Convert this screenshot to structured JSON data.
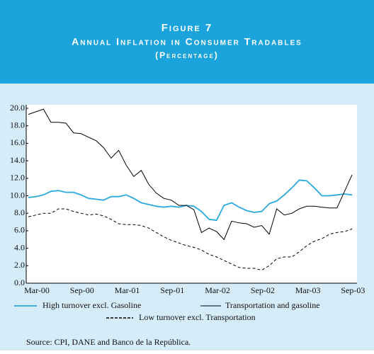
{
  "chart_data": {
    "type": "line",
    "figure": "Figure 7",
    "title": "Annual Inflation in Consumer Tradables",
    "subtitle": "(Percentage)",
    "source": "Source: CPI, DANE and Banco de la República.",
    "categories": [
      "Mar-00",
      null,
      null,
      null,
      null,
      null,
      "Sep-00",
      null,
      null,
      null,
      null,
      null,
      "Mar-01",
      null,
      null,
      null,
      null,
      null,
      "Sep-01",
      null,
      null,
      null,
      null,
      null,
      "Mar-02",
      null,
      null,
      null,
      null,
      null,
      "Sep-02",
      null,
      null,
      null,
      null,
      null,
      "Mar-03",
      null,
      null,
      null,
      null,
      null,
      "Sep-03",
      null
    ],
    "series": [
      {
        "name": "High turnover excl. Gasoline",
        "color": "#29a9df",
        "line_style": "solid",
        "values": [
          9.8,
          9.9,
          10.1,
          10.5,
          10.6,
          10.4,
          10.4,
          10.1,
          9.7,
          9.6,
          9.5,
          9.9,
          9.9,
          10.1,
          9.7,
          9.2,
          9.0,
          8.8,
          8.7,
          8.8,
          8.7,
          8.9,
          8.8,
          8.2,
          7.3,
          7.2,
          8.9,
          9.2,
          8.7,
          8.3,
          8.1,
          8.2,
          9.1,
          9.4,
          10.1,
          10.9,
          11.8,
          11.7,
          10.9,
          10.0,
          10.0,
          10.1,
          10.2,
          10.1
        ]
      },
      {
        "name": "Transportation and gasoline",
        "color": "#000000",
        "line_style": "solid",
        "values": [
          19.3,
          19.6,
          19.9,
          18.4,
          18.4,
          18.3,
          17.2,
          17.1,
          16.7,
          16.3,
          15.5,
          14.3,
          15.2,
          13.5,
          12.2,
          12.9,
          11.3,
          10.3,
          9.7,
          9.5,
          8.9,
          8.9,
          8.4,
          5.8,
          6.3,
          5.9,
          5.0,
          7.1,
          6.9,
          6.8,
          6.4,
          6.6,
          5.6,
          8.5,
          7.8,
          8.0,
          8.5,
          8.8,
          8.8,
          8.7,
          8.6,
          8.6,
          10.5,
          12.4
        ]
      },
      {
        "name": "Low turnover excl. Transportation",
        "color": "#000000",
        "line_style": "dashed",
        "values": [
          7.6,
          7.8,
          8.0,
          8.0,
          8.5,
          8.5,
          8.2,
          8.0,
          7.8,
          7.9,
          7.7,
          7.3,
          6.8,
          6.7,
          6.7,
          6.6,
          6.3,
          5.8,
          5.3,
          4.9,
          4.6,
          4.3,
          4.1,
          3.8,
          3.3,
          3.0,
          2.6,
          2.2,
          1.8,
          1.7,
          1.7,
          1.5,
          2.0,
          2.8,
          3.0,
          3.0,
          3.6,
          4.3,
          4.8,
          5.1,
          5.6,
          5.8,
          5.9,
          6.2
        ]
      }
    ],
    "ylim": [
      0,
      20
    ],
    "yticks": [
      {
        "value": 0,
        "label": "0.0"
      },
      {
        "value": 2,
        "label": "2.0"
      },
      {
        "value": 4,
        "label": "4.0"
      },
      {
        "value": 6,
        "label": "6.0"
      },
      {
        "value": 8,
        "label": "8.0"
      },
      {
        "value": 10,
        "label": "10.0"
      },
      {
        "value": 12,
        "label": "12.0"
      },
      {
        "value": 14,
        "label": "14.0"
      },
      {
        "value": 16,
        "label": "16.0"
      },
      {
        "value": 18,
        "label": "18.0"
      },
      {
        "value": 20,
        "label": "20.0"
      }
    ],
    "grid": false
  }
}
